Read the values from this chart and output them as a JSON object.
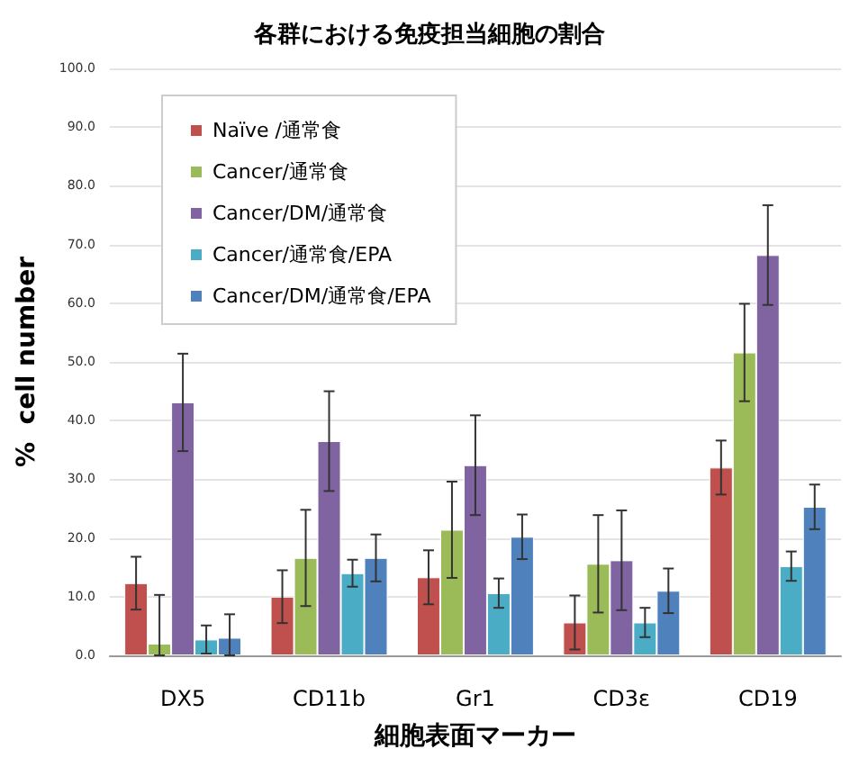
{
  "chart_data": {
    "type": "bar",
    "title": "各群における免疫担当細胞の割合",
    "xlabel": "細胞表面マーカー",
    "ylabel": "%  cell number",
    "categories": [
      "DX5",
      "CD11b",
      "Gr1",
      "CD3ε",
      "CD19"
    ],
    "series": [
      {
        "name": "Naïve /通常食",
        "color": "#c0504d",
        "values": [
          12.3,
          10.0,
          13.3,
          5.6,
          32.0
        ],
        "errors": [
          4.5,
          4.5,
          4.6,
          4.6,
          4.6
        ]
      },
      {
        "name": "Cancer/通常食",
        "color": "#9bbb59",
        "values": [
          2.0,
          16.6,
          21.4,
          15.6,
          51.6
        ],
        "errors": [
          [
            0,
            10.3
          ],
          8.2,
          8.2,
          8.3,
          8.3
        ]
      },
      {
        "name": "Cancer/DM/通常食",
        "color": "#8064a2",
        "values": [
          43.1,
          36.5,
          32.4,
          16.2,
          68.2
        ],
        "errors": [
          8.3,
          8.5,
          8.5,
          8.5,
          8.5
        ]
      },
      {
        "name": "Cancer/通常食/EPA",
        "color": "#4bacc6",
        "values": [
          2.7,
          14.0,
          10.6,
          5.6,
          15.2
        ],
        "errors": [
          2.4,
          2.3,
          2.5,
          2.5,
          2.5
        ]
      },
      {
        "name": "Cancer/DM/通常食/EPA",
        "color": "#4f81bd",
        "values": [
          3.0,
          16.6,
          20.2,
          11.0,
          25.3
        ],
        "errors": [
          [
            0,
            7.0
          ],
          4.0,
          3.8,
          3.8,
          3.8
        ]
      }
    ],
    "ylim": [
      0,
      100
    ],
    "yticks": [
      {
        "value": 0,
        "label": "0.0"
      },
      {
        "value": 10,
        "label": "10.0"
      },
      {
        "value": 20,
        "label": "20.0"
      },
      {
        "value": 30,
        "label": "30.0"
      },
      {
        "value": 40,
        "label": "40.0"
      },
      {
        "value": 50,
        "label": "50.0"
      },
      {
        "value": 60,
        "label": "60.0"
      },
      {
        "value": 70,
        "label": "70.0"
      },
      {
        "value": 80,
        "label": "80.0"
      },
      {
        "value": 90,
        "label": "90.0"
      },
      {
        "value": 100,
        "label": "100.0"
      }
    ],
    "grid": "y",
    "legend": "top left"
  }
}
